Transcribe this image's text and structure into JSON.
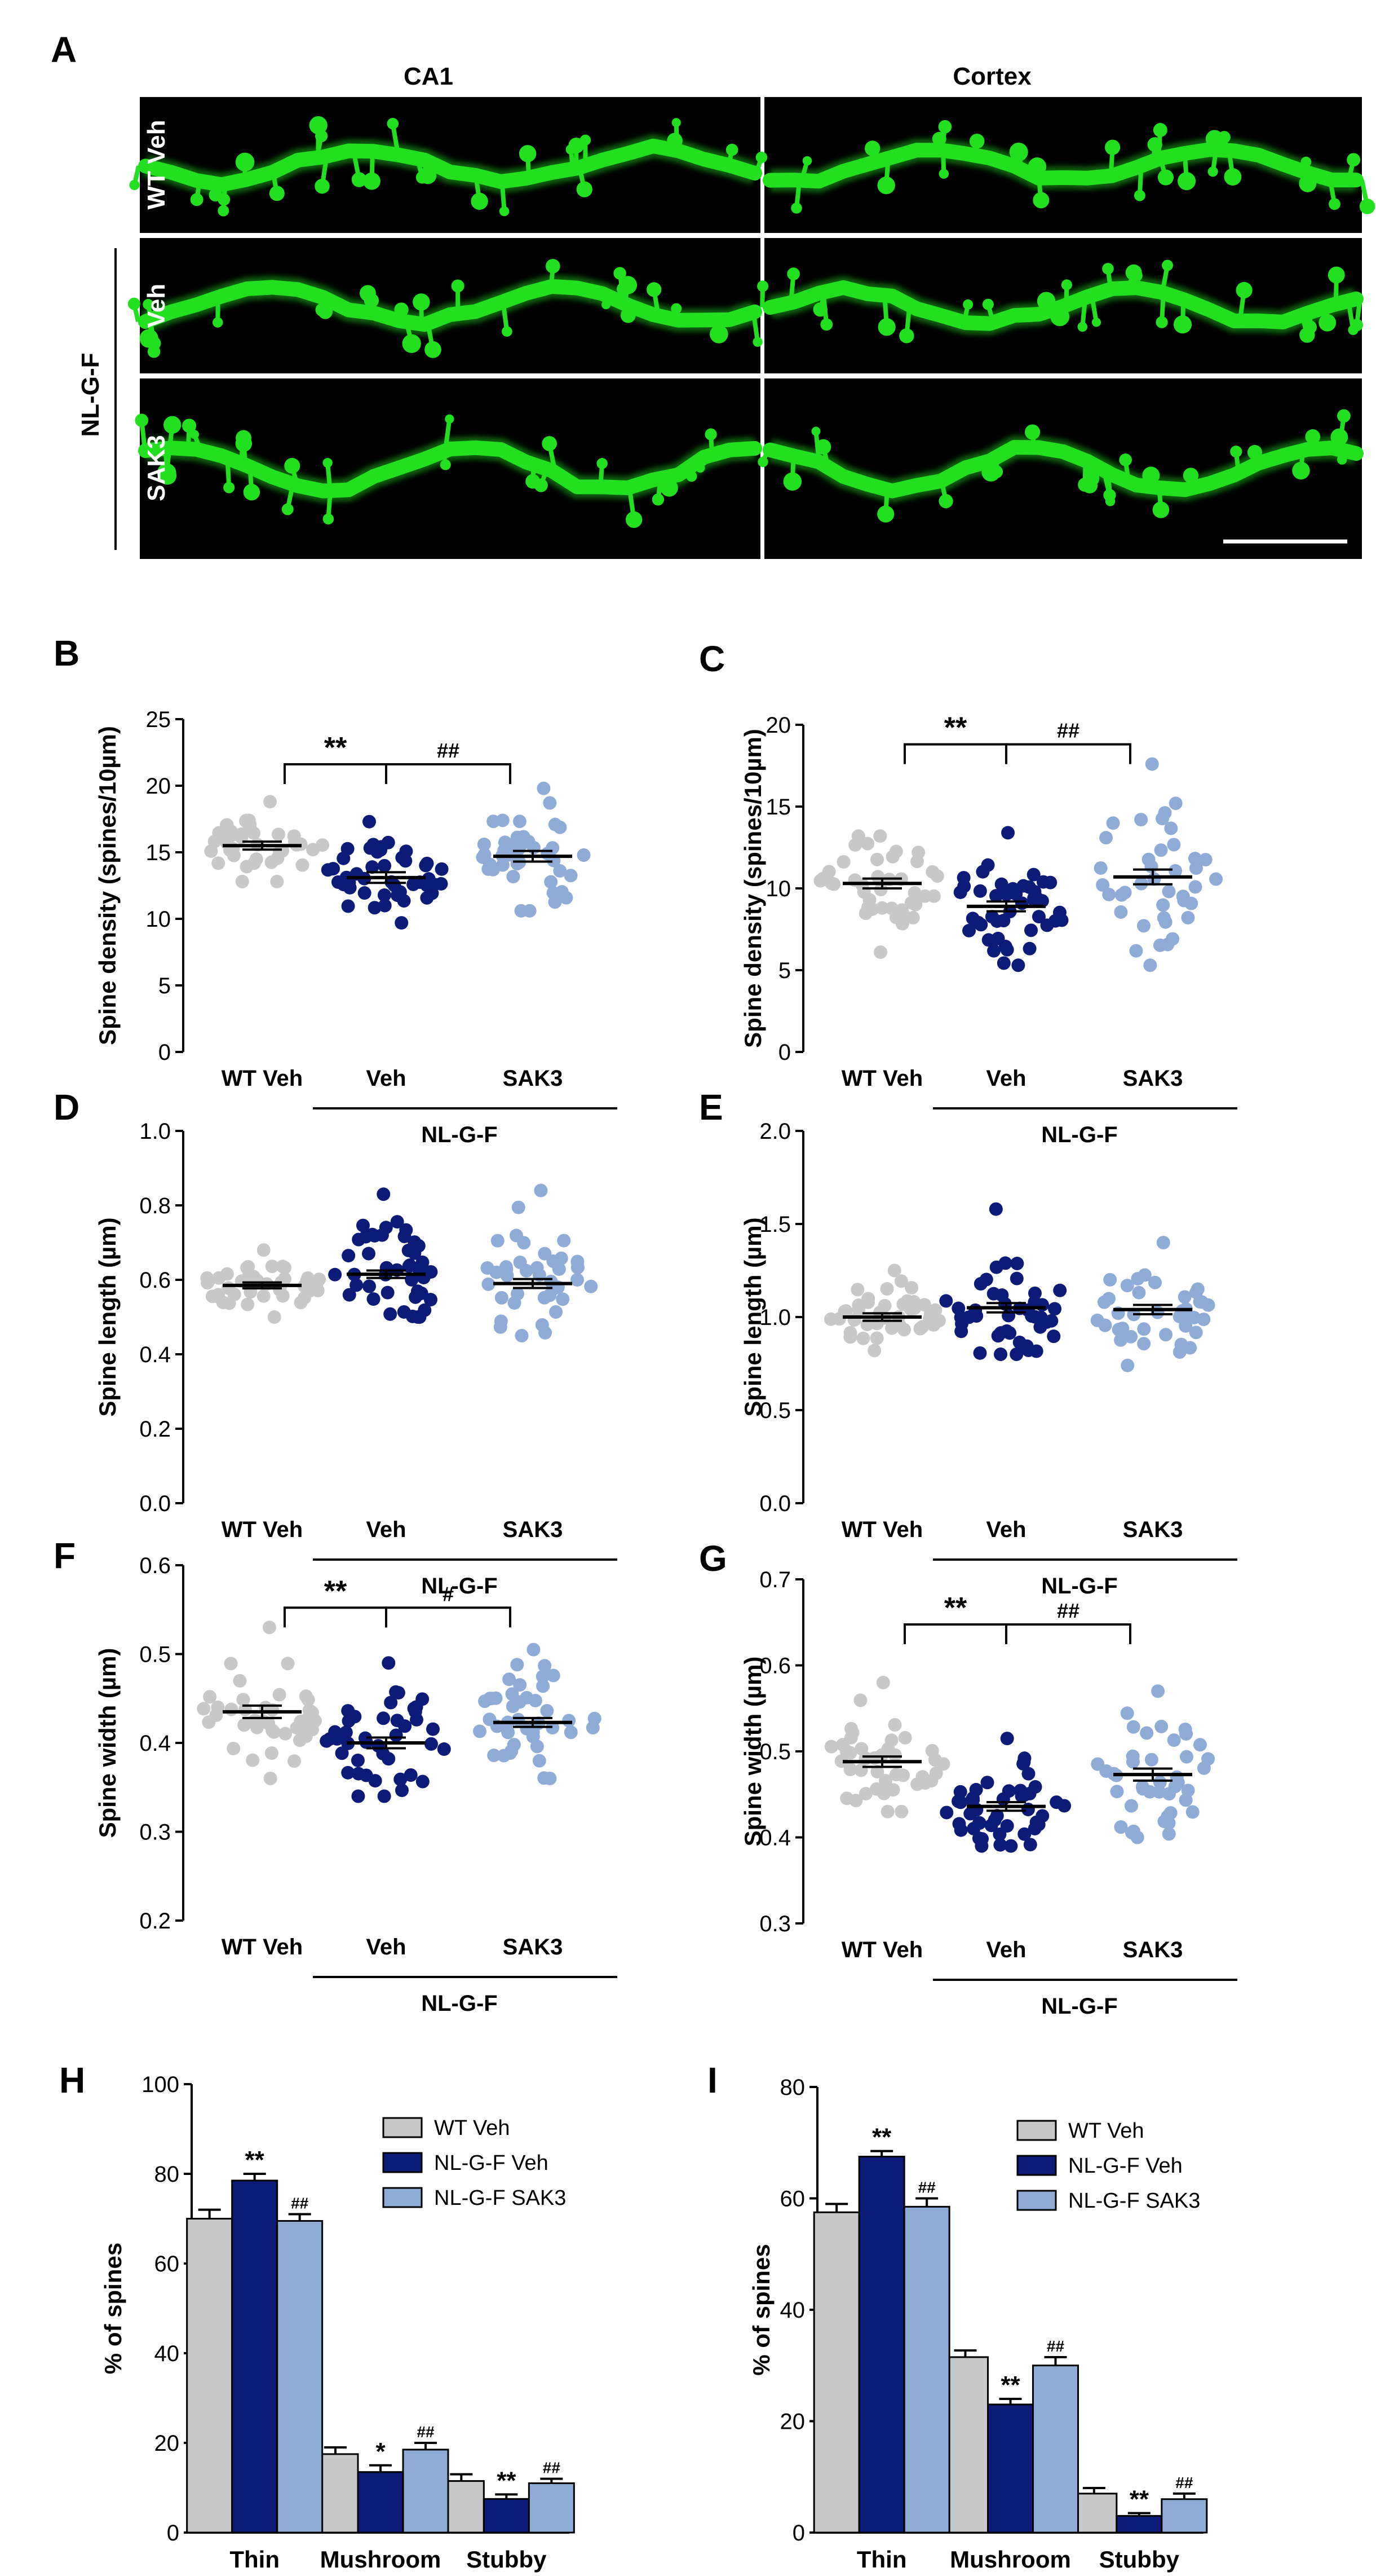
{
  "colors": {
    "wt": "#c8c8c8",
    "veh": "#0c1a78",
    "sak3": "#8eacd6",
    "green": "#22e020",
    "mean": "#000000"
  },
  "panel_a": {
    "label": "A",
    "columns": [
      "CA1",
      "Cortex"
    ],
    "rows": [
      "WT Veh",
      "Veh",
      "SAK3"
    ],
    "group_label": "NL-G-F"
  },
  "chart_data": [
    {
      "id": "B",
      "type": "scatter",
      "ylabel": "Spine density (spines/10µm)",
      "ylim": [
        0,
        25
      ],
      "yticks": [
        "0",
        "5",
        "10",
        "15",
        "20",
        "25"
      ],
      "categories": [
        "WT Veh",
        "Veh",
        "SAK3"
      ],
      "group_label": "NL-G-F",
      "series": [
        {
          "name": "WT Veh",
          "mean": 15.5,
          "sem": 0.3,
          "n": 40,
          "min": 12.8,
          "max": 18.8
        },
        {
          "name": "Veh",
          "mean": 13.1,
          "sem": 0.4,
          "n": 45,
          "min": 9.7,
          "max": 17.3
        },
        {
          "name": "SAK3",
          "mean": 14.7,
          "sem": 0.4,
          "n": 42,
          "min": 10.6,
          "max": 19.8
        }
      ],
      "brackets": [
        {
          "from": 0,
          "to": 1,
          "label": "**"
        },
        {
          "from": 1,
          "to": 2,
          "label": "##"
        }
      ]
    },
    {
      "id": "C",
      "type": "scatter",
      "ylabel": "Spine density (spines/10µm)",
      "ylim": [
        0,
        20
      ],
      "yticks": [
        "0",
        "5",
        "10",
        "15",
        "20"
      ],
      "categories": [
        "WT Veh",
        "Veh",
        "SAK3"
      ],
      "group_label": "NL-G-F",
      "series": [
        {
          "name": "WT Veh",
          "mean": 10.3,
          "sem": 0.3,
          "n": 42,
          "min": 6.1,
          "max": 13.2
        },
        {
          "name": "Veh",
          "mean": 8.9,
          "sem": 0.3,
          "n": 46,
          "min": 5.3,
          "max": 13.4
        },
        {
          "name": "SAK3",
          "mean": 10.7,
          "sem": 0.45,
          "n": 40,
          "min": 5.3,
          "max": 17.6
        }
      ],
      "brackets": [
        {
          "from": 0,
          "to": 1,
          "label": "**"
        },
        {
          "from": 1,
          "to": 2,
          "label": "##"
        }
      ]
    },
    {
      "id": "D",
      "type": "scatter",
      "ylabel": "Spine length (µm)",
      "ylim": [
        0,
        1
      ],
      "yticks": [
        "0.0",
        "0.2",
        "0.4",
        "0.6",
        "0.8",
        "1.0"
      ],
      "categories": [
        "WT Veh",
        "Veh",
        "SAK3"
      ],
      "group_label": "NL-G-F",
      "series": [
        {
          "name": "WT Veh",
          "mean": 0.585,
          "sem": 0.008,
          "n": 42,
          "min": 0.5,
          "max": 0.68
        },
        {
          "name": "Veh",
          "mean": 0.615,
          "sem": 0.01,
          "n": 44,
          "min": 0.5,
          "max": 0.83
        },
        {
          "name": "SAK3",
          "mean": 0.59,
          "sem": 0.012,
          "n": 40,
          "min": 0.45,
          "max": 0.84
        }
      ],
      "brackets": []
    },
    {
      "id": "E",
      "type": "scatter",
      "ylabel": "Spine length (µm)",
      "ylim": [
        0,
        2
      ],
      "yticks": [
        "0.0",
        "0.5",
        "1.0",
        "1.5",
        "2.0"
      ],
      "categories": [
        "WT Veh",
        "Veh",
        "SAK3"
      ],
      "group_label": "NL-G-F",
      "series": [
        {
          "name": "WT Veh",
          "mean": 1.0,
          "sem": 0.02,
          "n": 42,
          "min": 0.82,
          "max": 1.25
        },
        {
          "name": "Veh",
          "mean": 1.05,
          "sem": 0.025,
          "n": 44,
          "min": 0.8,
          "max": 1.58
        },
        {
          "name": "SAK3",
          "mean": 1.04,
          "sem": 0.025,
          "n": 40,
          "min": 0.74,
          "max": 1.4
        }
      ],
      "brackets": []
    },
    {
      "id": "F",
      "type": "scatter",
      "ylabel": "Spine width (µm)",
      "ylim": [
        0.2,
        0.6
      ],
      "yticks": [
        "0.2",
        "0.3",
        "0.4",
        "0.5",
        "0.6"
      ],
      "categories": [
        "WT Veh",
        "Veh",
        "SAK3"
      ],
      "group_label": "NL-G-F",
      "series": [
        {
          "name": "WT Veh",
          "mean": 0.435,
          "sem": 0.007,
          "n": 42,
          "min": 0.36,
          "max": 0.53
        },
        {
          "name": "Veh",
          "mean": 0.4,
          "sem": 0.006,
          "n": 42,
          "min": 0.34,
          "max": 0.49
        },
        {
          "name": "SAK3",
          "mean": 0.423,
          "sem": 0.005,
          "n": 42,
          "min": 0.36,
          "max": 0.505
        }
      ],
      "brackets": [
        {
          "from": 0,
          "to": 1,
          "label": "**"
        },
        {
          "from": 1,
          "to": 2,
          "label": "#"
        }
      ]
    },
    {
      "id": "G",
      "type": "scatter",
      "ylabel": "Spine width (µm)",
      "ylim": [
        0.3,
        0.7
      ],
      "yticks": [
        "0.3",
        "0.4",
        "0.5",
        "0.6",
        "0.7"
      ],
      "categories": [
        "WT Veh",
        "Veh",
        "SAK3"
      ],
      "group_label": "NL-G-F",
      "series": [
        {
          "name": "WT Veh",
          "mean": 0.488,
          "sem": 0.006,
          "n": 42,
          "min": 0.43,
          "max": 0.58
        },
        {
          "name": "Veh",
          "mean": 0.436,
          "sem": 0.005,
          "n": 48,
          "min": 0.39,
          "max": 0.515
        },
        {
          "name": "SAK3",
          "mean": 0.473,
          "sem": 0.007,
          "n": 42,
          "min": 0.4,
          "max": 0.57
        }
      ],
      "brackets": [
        {
          "from": 0,
          "to": 1,
          "label": "**"
        },
        {
          "from": 1,
          "to": 2,
          "label": "##"
        }
      ]
    },
    {
      "id": "H",
      "type": "bar",
      "ylabel": "% of spines",
      "ylim": [
        0,
        100
      ],
      "yticks": [
        "0",
        "20",
        "40",
        "60",
        "80",
        "100"
      ],
      "categories": [
        "Thin",
        "Mushroom",
        "Stubby"
      ],
      "series": [
        {
          "name": "WT Veh",
          "values": [
            70,
            17.5,
            11.5
          ],
          "errors": [
            2,
            1.5,
            1.5
          ],
          "sig": [
            "",
            "",
            ""
          ]
        },
        {
          "name": "NL-G-F Veh",
          "values": [
            78.5,
            13.5,
            7.5
          ],
          "errors": [
            1.5,
            1.5,
            1
          ],
          "sig": [
            "**",
            "*",
            "**"
          ]
        },
        {
          "name": "NL-G-F SAK3",
          "values": [
            69.5,
            18.5,
            11
          ],
          "errors": [
            1.5,
            1.5,
            1
          ],
          "sig": [
            "##",
            "##",
            "##"
          ]
        }
      ]
    },
    {
      "id": "I",
      "type": "bar",
      "ylabel": "% of spines",
      "ylim": [
        0,
        80
      ],
      "yticks": [
        "0",
        "20",
        "40",
        "60",
        "80"
      ],
      "categories": [
        "Thin",
        "Mushroom",
        "Stubby"
      ],
      "series": [
        {
          "name": "WT Veh",
          "values": [
            57.5,
            31.5,
            7
          ],
          "errors": [
            1.5,
            1.2,
            1
          ],
          "sig": [
            "",
            "",
            ""
          ]
        },
        {
          "name": "NL-G-F Veh",
          "values": [
            67.5,
            23,
            3
          ],
          "errors": [
            1,
            1,
            0.5
          ],
          "sig": [
            "**",
            "**",
            "**"
          ]
        },
        {
          "name": "NL-G-F SAK3",
          "values": [
            58.5,
            30,
            6
          ],
          "errors": [
            1.5,
            1.5,
            1
          ],
          "sig": [
            "##",
            "##",
            "##"
          ]
        }
      ]
    }
  ]
}
